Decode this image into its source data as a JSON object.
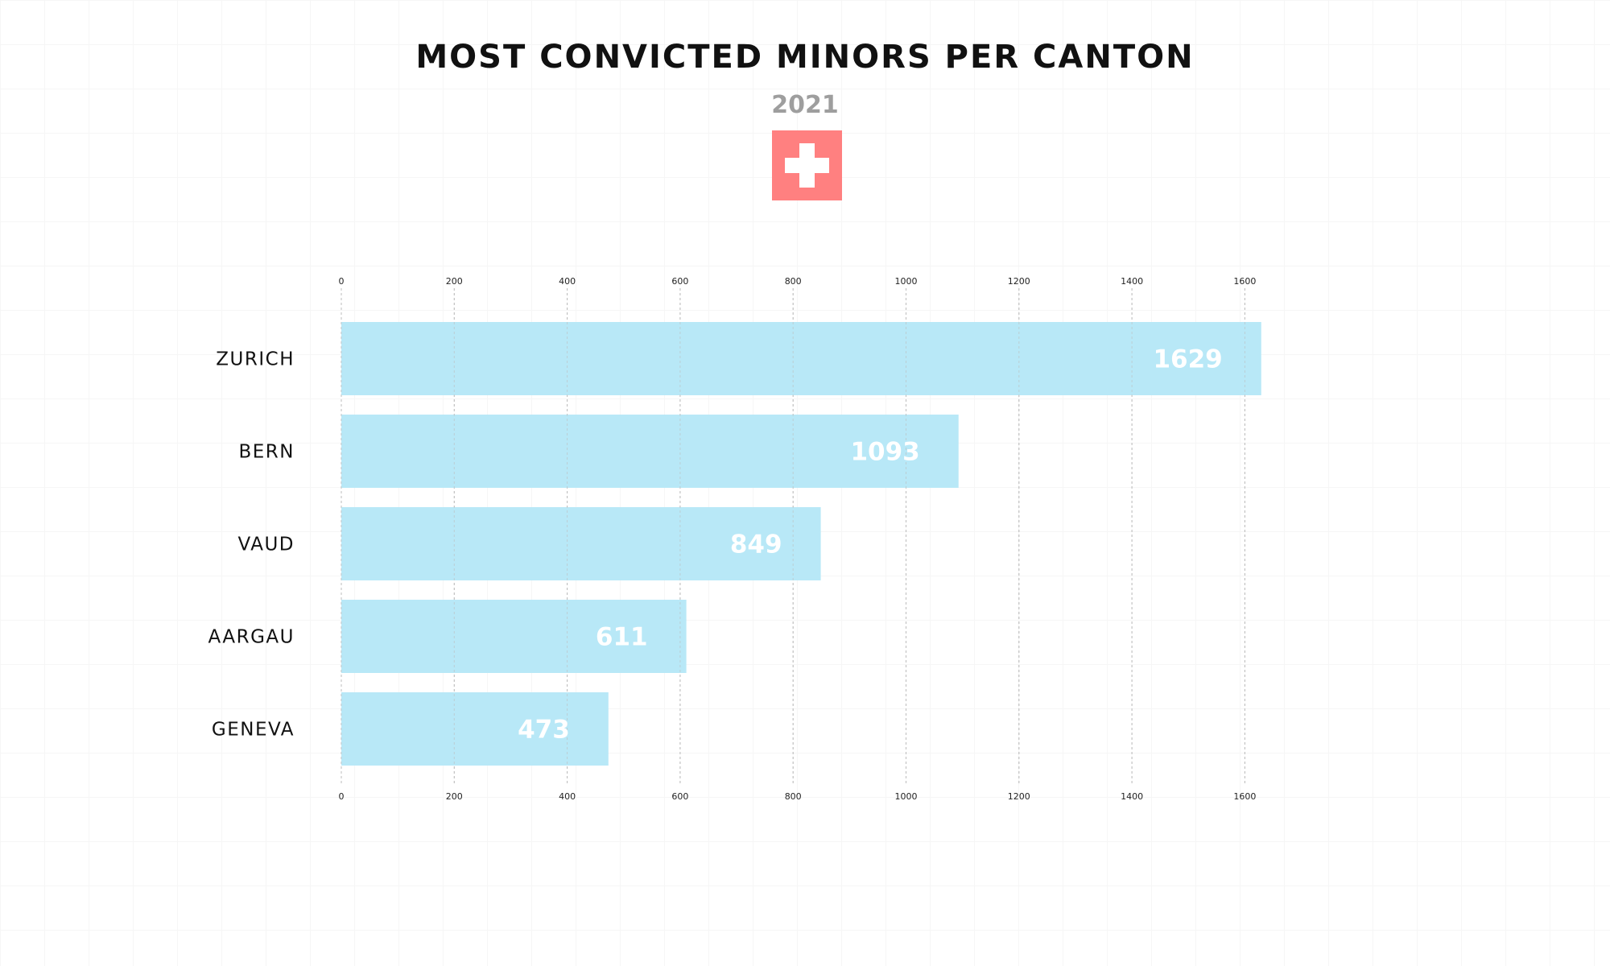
{
  "header": {
    "title": "MOST CONVICTED MINORS PER CANTON",
    "subtitle": "2021",
    "flag_icon": "swiss-flag-icon"
  },
  "colors": {
    "bar": "#b8e8f7",
    "flag_red": "#ff8080",
    "flag_cross": "#ffffff",
    "title": "#111111",
    "subtitle": "#9e9e9e",
    "value_label": "#ffffff",
    "grid": "#bdbdbd"
  },
  "chart_data": {
    "type": "bar",
    "orientation": "horizontal",
    "title": "MOST CONVICTED MINORS PER CANTON",
    "subtitle": "2021",
    "categories": [
      "ZURICH",
      "BERN",
      "VAUD",
      "AARGAU",
      "GENEVA"
    ],
    "values": [
      1629,
      1093,
      849,
      611,
      473
    ],
    "value_labels": [
      "1629",
      "1093",
      "849",
      "611",
      "473"
    ],
    "xlabel": "",
    "ylabel": "",
    "xlim": [
      0,
      1600
    ],
    "xticks": [
      0,
      200,
      400,
      600,
      800,
      1000,
      1200,
      1400,
      1600
    ],
    "xtick_labels": [
      "0",
      "200",
      "400",
      "600",
      "800",
      "1000",
      "1200",
      "1400",
      "1600"
    ],
    "axis_labels_position": "top and bottom",
    "grid": "vertical dashed",
    "legend": "none"
  }
}
